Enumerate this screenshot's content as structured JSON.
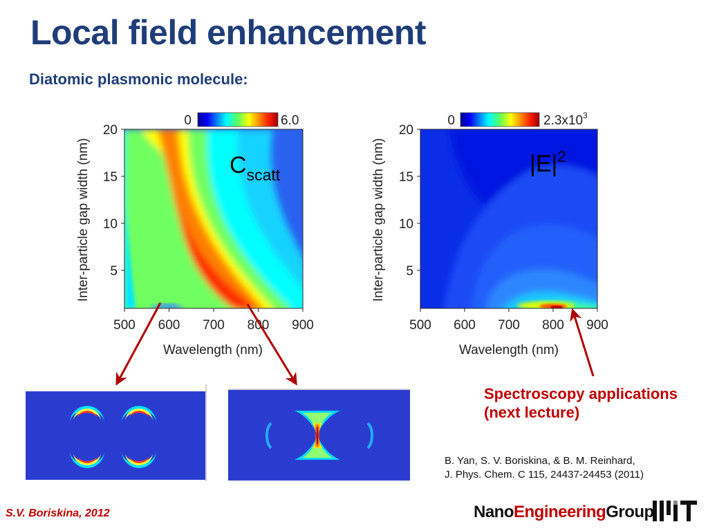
{
  "slide": {
    "title": "Local field enhancement",
    "subtitle": "Diatomic plasmonic molecule:"
  },
  "chart_data": [
    {
      "type": "heatmap",
      "title": "C",
      "title_subscript": "scatt",
      "xlabel": "Wavelength (nm)",
      "ylabel": "Inter-particle gap width (nm)",
      "xlim": [
        500,
        900
      ],
      "ylim": [
        1,
        20
      ],
      "xticks": [
        "500",
        "600",
        "700",
        "800",
        "900"
      ],
      "yticks": [
        "5",
        "10",
        "15",
        "20"
      ],
      "colorbar": {
        "min_label": "0",
        "max_label": "6.0",
        "min": 0,
        "max": 6.0
      }
    },
    {
      "type": "heatmap",
      "title": "|E|",
      "title_superscript": "2",
      "xlabel": "Wavelength (nm)",
      "ylabel": "Inter-particle gap width (nm)",
      "xlim": [
        500,
        900
      ],
      "ylim": [
        1,
        20
      ],
      "xticks": [
        "500",
        "600",
        "700",
        "800",
        "900"
      ],
      "yticks": [
        "5",
        "10",
        "15",
        "20"
      ],
      "colorbar": {
        "min_label": "0",
        "max_label": "2.3x10",
        "max_label_exp": "3",
        "min": 0,
        "max": 2300
      }
    }
  ],
  "annotations": {
    "applications_line1": "Spectroscopy applications",
    "applications_line2": "(next lecture)",
    "reference_line1": "B. Yan, S. V. Boriskina, & B. M. Reinhard,",
    "reference_line2": "J. Phys. Chem. C 115, 24437-24453 (2011)"
  },
  "footer": {
    "author": "S.V. Boriskina, 2012",
    "group_part1": "Nano",
    "group_part2": "Engineering",
    "group_part3": "Group"
  },
  "colors": {
    "title": "#1f3d79",
    "accent_red": "#c00000",
    "field_blue": "#2a3ccf"
  }
}
